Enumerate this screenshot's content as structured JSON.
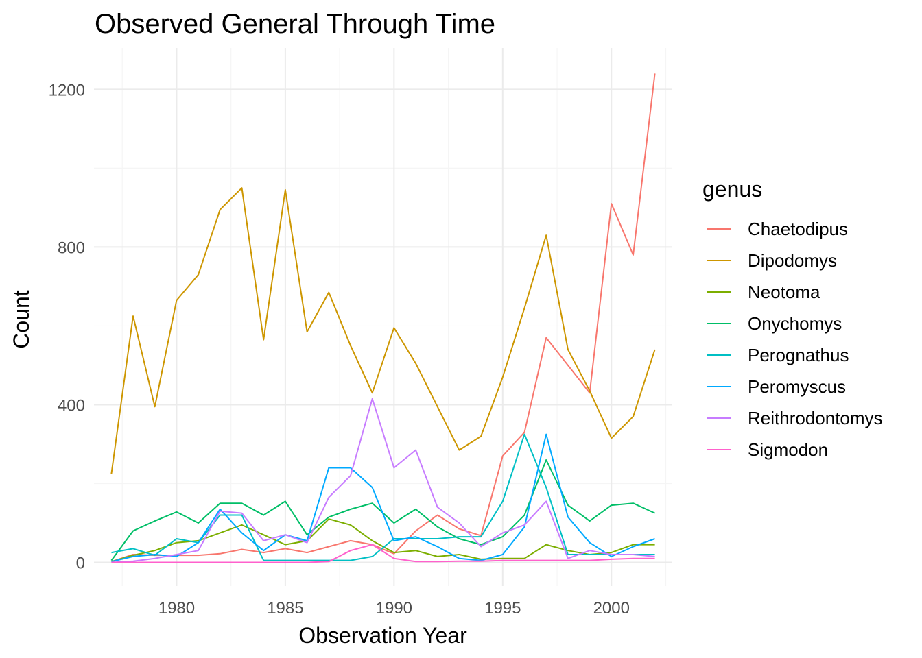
{
  "chart_data": {
    "type": "line",
    "title": "Observed General Through Time",
    "xlabel": "Observation Year",
    "ylabel": "Count",
    "x": [
      1977,
      1978,
      1979,
      1980,
      1981,
      1982,
      1983,
      1984,
      1985,
      1986,
      1987,
      1988,
      1989,
      1990,
      1991,
      1992,
      1993,
      1994,
      1995,
      1996,
      1997,
      1998,
      1999,
      2000,
      2001,
      2002
    ],
    "xlim": [
      1976.2,
      2002.8
    ],
    "ylim": [
      -60,
      1305
    ],
    "x_ticks": [
      1980,
      1985,
      1990,
      1995,
      2000
    ],
    "x_tick_labels": [
      "1980",
      "1985",
      "1990",
      "1995",
      "2000"
    ],
    "y_ticks": [
      0,
      400,
      800,
      1200
    ],
    "y_tick_labels": [
      "0",
      "400",
      "800",
      "1200"
    ],
    "grid": true,
    "legend": {
      "title": "genus",
      "position": "right"
    },
    "series": [
      {
        "name": "Chaetodipus",
        "color": "#F8766D",
        "values": [
          2,
          20,
          18,
          18,
          18,
          22,
          33,
          25,
          35,
          25,
          40,
          55,
          45,
          22,
          80,
          120,
          85,
          68,
          270,
          330,
          570,
          500,
          430,
          910,
          780,
          1240
        ]
      },
      {
        "name": "Dipodomys",
        "color": "#CD9600",
        "values": [
          225,
          625,
          395,
          665,
          730,
          895,
          950,
          565,
          945,
          585,
          685,
          550,
          430,
          595,
          505,
          395,
          285,
          320,
          470,
          645,
          830,
          540,
          435,
          315,
          370,
          540
        ]
      },
      {
        "name": "Neotoma",
        "color": "#7CAE00",
        "values": [
          2,
          18,
          30,
          50,
          55,
          75,
          95,
          70,
          45,
          55,
          110,
          95,
          55,
          25,
          30,
          15,
          20,
          8,
          10,
          10,
          45,
          30,
          20,
          25,
          45,
          45
        ]
      },
      {
        "name": "Onychomys",
        "color": "#00BE67",
        "values": [
          5,
          80,
          105,
          128,
          100,
          150,
          150,
          120,
          155,
          70,
          115,
          135,
          150,
          100,
          135,
          90,
          60,
          45,
          65,
          120,
          260,
          145,
          105,
          145,
          150,
          125
        ]
      },
      {
        "name": "Perognathus",
        "color": "#00BFC4",
        "values": [
          25,
          35,
          18,
          60,
          50,
          120,
          120,
          5,
          5,
          5,
          5,
          5,
          15,
          60,
          60,
          60,
          65,
          65,
          155,
          325,
          190,
          20,
          20,
          20,
          20,
          20
        ]
      },
      {
        "name": "Peromyscus",
        "color": "#00A9FF",
        "values": [
          2,
          15,
          20,
          15,
          50,
          135,
          75,
          30,
          70,
          55,
          240,
          240,
          190,
          55,
          65,
          40,
          10,
          5,
          20,
          90,
          325,
          115,
          50,
          15,
          40,
          60
        ]
      },
      {
        "name": "Reithrodontomys",
        "color": "#C77CFF",
        "values": [
          0,
          3,
          10,
          20,
          30,
          130,
          125,
          55,
          70,
          50,
          165,
          220,
          415,
          240,
          285,
          140,
          100,
          40,
          75,
          95,
          155,
          10,
          30,
          20,
          20,
          15
        ]
      },
      {
        "name": "Sigmodon",
        "color": "#FF61CC",
        "values": [
          0,
          0,
          0,
          0,
          0,
          0,
          0,
          0,
          0,
          0,
          2,
          30,
          45,
          10,
          2,
          2,
          3,
          3,
          5,
          5,
          5,
          5,
          5,
          8,
          10,
          10
        ]
      }
    ]
  }
}
